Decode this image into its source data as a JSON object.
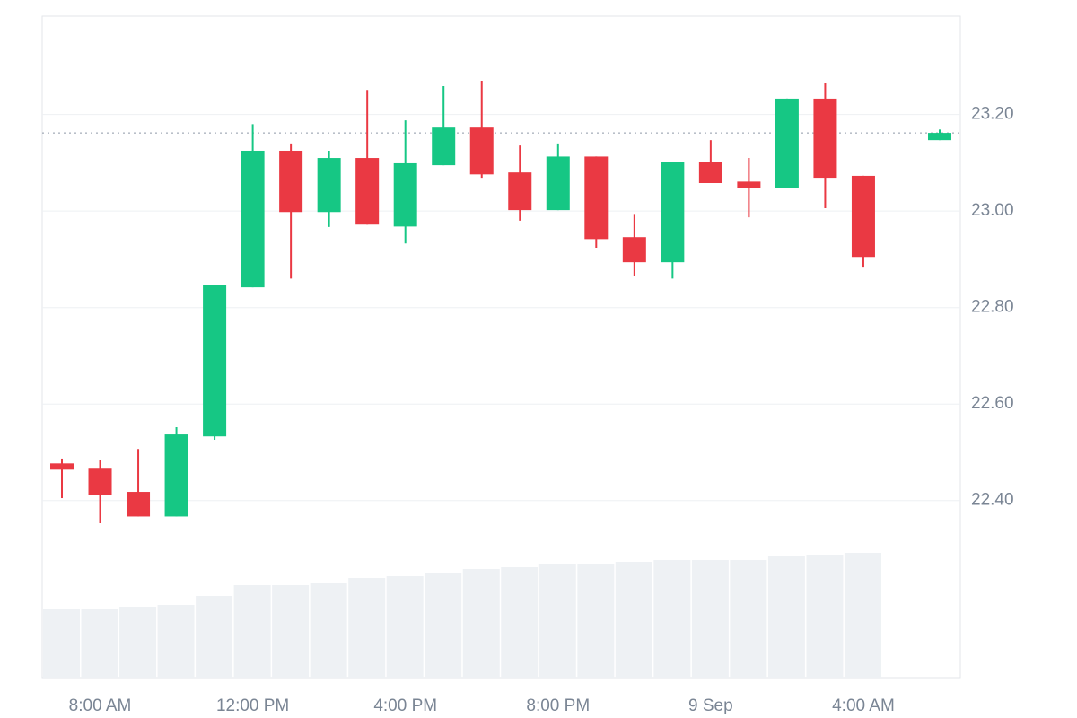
{
  "chart_data": {
    "type": "candlestick",
    "categories": [
      null,
      "8:00 AM",
      null,
      null,
      null,
      "12:00 PM",
      null,
      null,
      null,
      "4:00 PM",
      null,
      null,
      null,
      "8:00 PM",
      null,
      null,
      null,
      "9 Sep",
      null,
      null,
      null,
      "4:00 AM",
      null,
      null
    ],
    "open": [
      22.477,
      22.466,
      22.418,
      22.367,
      22.533,
      22.842,
      23.125,
      22.998,
      23.11,
      22.968,
      23.095,
      23.173,
      23.08,
      23.002,
      23.113,
      22.946,
      22.894,
      23.102,
      23.061,
      23.047,
      23.233,
      23.073,
      null,
      23.147
    ],
    "high": [
      22.487,
      22.485,
      22.507,
      22.552,
      22.846,
      23.18,
      23.14,
      23.125,
      23.251,
      23.188,
      23.259,
      23.27,
      23.136,
      23.14,
      23.113,
      22.994,
      23.102,
      23.147,
      23.11,
      23.233,
      23.266,
      23.073,
      null,
      23.169
    ],
    "low": [
      22.405,
      22.353,
      22.367,
      22.367,
      22.526,
      22.842,
      22.86,
      22.967,
      22.972,
      22.933,
      23.095,
      23.069,
      22.98,
      23.002,
      22.924,
      22.866,
      22.86,
      23.058,
      22.987,
      23.047,
      23.006,
      22.883,
      null,
      23.147
    ],
    "close": [
      22.464,
      22.412,
      22.367,
      22.537,
      22.846,
      23.125,
      22.998,
      23.11,
      22.972,
      23.099,
      23.173,
      23.076,
      23.002,
      23.113,
      22.942,
      22.894,
      23.102,
      23.058,
      23.048,
      23.233,
      23.069,
      22.905,
      null,
      23.162
    ],
    "volume": [
      77,
      77,
      79,
      81,
      91,
      103,
      103,
      105,
      111,
      113,
      117,
      121,
      123,
      127,
      127,
      129,
      131,
      131,
      131,
      135,
      137,
      139,
      null,
      null
    ],
    "up_color": "#16c784",
    "down_color": "#ea3943",
    "volume_color": "#eef1f4",
    "last_price": 23.162,
    "ylim": [
      22.033,
      23.404
    ],
    "yticks": [
      {
        "value": 22.4,
        "label": "22.40"
      },
      {
        "value": 22.6,
        "label": "22.60"
      },
      {
        "value": 22.8,
        "label": "22.80"
      },
      {
        "value": 23.0,
        "label": "23.00"
      },
      {
        "value": 23.2,
        "label": "23.20"
      }
    ],
    "grid": true
  }
}
